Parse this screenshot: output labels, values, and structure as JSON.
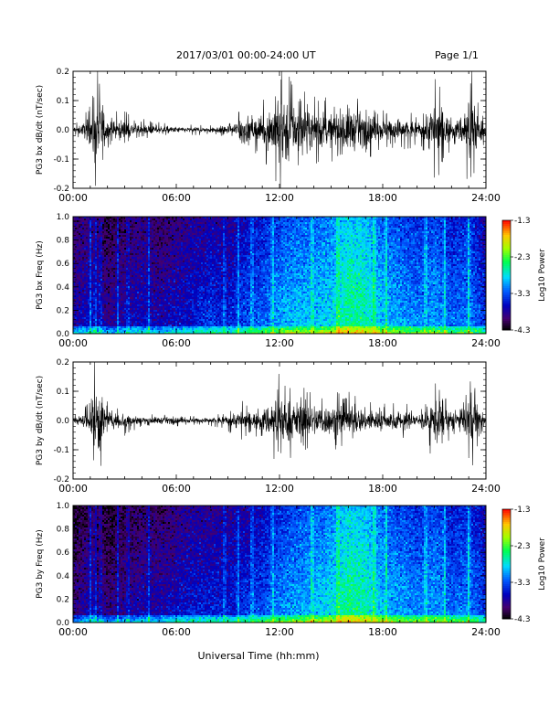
{
  "header": {
    "date_range": "2017/03/01   00:00-24:00 UT",
    "page": "Page 1/1"
  },
  "x_axis": {
    "label": "Universal Time (hh:mm)",
    "tick_labels": [
      "00:00",
      "06:00",
      "12:00",
      "18:00",
      "24:00"
    ]
  },
  "chart_data": [
    {
      "type": "line",
      "panel": "bx_dbdt",
      "ylabel": "PG3 bx dB/dt (nT/sec)",
      "ylim": [
        -0.2,
        0.2
      ],
      "y_ticks": [
        "0.2",
        "0.1",
        "0.0",
        "-0.1",
        "-0.2"
      ],
      "x_range_hours": [
        0,
        24
      ],
      "envelope": {
        "x_hours": [
          0,
          0.5,
          1.0,
          1.2,
          1.4,
          1.6,
          1.9,
          2.3,
          2.8,
          3.5,
          4.5,
          5.5,
          6.5,
          7.5,
          8.5,
          9.3,
          9.8,
          10.4,
          11.0,
          11.6,
          12.0,
          12.4,
          12.8,
          13.3,
          13.8,
          14.3,
          14.8,
          15.3,
          15.8,
          16.3,
          16.8,
          17.3,
          17.8,
          18.3,
          18.8,
          19.3,
          19.8,
          20.3,
          20.8,
          21.2,
          21.6,
          22.0,
          22.4,
          22.8,
          23.2,
          23.6,
          24.0
        ],
        "amplitude": [
          0.02,
          0.03,
          0.08,
          0.22,
          0.22,
          0.2,
          0.08,
          0.05,
          0.06,
          0.04,
          0.025,
          0.02,
          0.015,
          0.015,
          0.02,
          0.03,
          0.1,
          0.06,
          0.08,
          0.15,
          0.22,
          0.21,
          0.15,
          0.12,
          0.1,
          0.12,
          0.09,
          0.1,
          0.14,
          0.12,
          0.1,
          0.08,
          0.07,
          0.06,
          0.07,
          0.06,
          0.05,
          0.05,
          0.14,
          0.16,
          0.1,
          0.05,
          0.06,
          0.14,
          0.22,
          0.08,
          0.03
        ]
      }
    },
    {
      "type": "heatmap",
      "panel": "bx_freq",
      "ylabel": "PG3 bx Freq (Hz)",
      "ylim": [
        0,
        1.0
      ],
      "y_ticks": [
        "1.0",
        "0.8",
        "0.6",
        "0.4",
        "0.2",
        "0.0"
      ],
      "x_range_hours": [
        0,
        24
      ],
      "colorbar": {
        "label": "Log10 Power",
        "range": [
          -4.3,
          -1.3
        ],
        "ticks": [
          "-1.3",
          "-2.3",
          "-3.3",
          "-4.3"
        ]
      },
      "mean_log_power_by_hour": {
        "x_hours": [
          0,
          1,
          2,
          3,
          4,
          5,
          6,
          7,
          8,
          9,
          10,
          11,
          12,
          13,
          14,
          15,
          16,
          17,
          18,
          19,
          20,
          21,
          22,
          23,
          24
        ],
        "values": [
          -3.7,
          -3.6,
          -3.8,
          -3.7,
          -3.6,
          -3.7,
          -3.6,
          -3.5,
          -3.4,
          -3.5,
          -3.3,
          -3.2,
          -3.0,
          -2.9,
          -2.9,
          -2.8,
          -2.5,
          -2.6,
          -2.9,
          -3.0,
          -3.1,
          -3.0,
          -3.2,
          -3.1,
          -3.4
        ]
      }
    },
    {
      "type": "line",
      "panel": "by_dbdt",
      "ylabel": "PG3 by dB/dt (nT/sec)",
      "ylim": [
        -0.2,
        0.2
      ],
      "y_ticks": [
        "0.2",
        "0.1",
        "0.0",
        "-0.1",
        "-0.2"
      ],
      "x_range_hours": [
        0,
        24
      ],
      "envelope": {
        "x_hours": [
          0,
          0.5,
          1.0,
          1.2,
          1.4,
          1.6,
          1.9,
          2.3,
          2.8,
          3.5,
          4.5,
          5.5,
          6.5,
          7.5,
          8.5,
          9.3,
          9.8,
          10.4,
          11.0,
          11.6,
          12.0,
          12.4,
          12.8,
          13.3,
          13.8,
          14.3,
          14.8,
          15.3,
          15.8,
          16.3,
          16.8,
          17.3,
          17.8,
          18.3,
          18.8,
          19.3,
          19.8,
          20.3,
          20.8,
          21.2,
          21.6,
          22.0,
          22.4,
          22.8,
          23.2,
          23.6,
          24.0
        ],
        "amplitude": [
          0.02,
          0.03,
          0.06,
          0.2,
          0.22,
          0.2,
          0.06,
          0.04,
          0.05,
          0.03,
          0.02,
          0.02,
          0.015,
          0.015,
          0.02,
          0.04,
          0.06,
          0.04,
          0.06,
          0.12,
          0.14,
          0.13,
          0.11,
          0.1,
          0.09,
          0.1,
          0.08,
          0.09,
          0.1,
          0.08,
          0.07,
          0.06,
          0.06,
          0.05,
          0.06,
          0.05,
          0.04,
          0.05,
          0.1,
          0.13,
          0.08,
          0.05,
          0.05,
          0.1,
          0.16,
          0.06,
          0.03
        ]
      }
    },
    {
      "type": "heatmap",
      "panel": "by_freq",
      "ylabel": "PG3 by Freq (Hz)",
      "ylim": [
        0,
        1.0
      ],
      "y_ticks": [
        "1.0",
        "0.8",
        "0.6",
        "0.4",
        "0.2",
        "0.0"
      ],
      "x_range_hours": [
        0,
        24
      ],
      "colorbar": {
        "label": "Log10 Power",
        "range": [
          -4.3,
          -1.3
        ],
        "ticks": [
          "-1.3",
          "-2.3",
          "-3.3",
          "-4.3"
        ]
      },
      "mean_log_power_by_hour": {
        "x_hours": [
          0,
          1,
          2,
          3,
          4,
          5,
          6,
          7,
          8,
          9,
          10,
          11,
          12,
          13,
          14,
          15,
          16,
          17,
          18,
          19,
          20,
          21,
          22,
          23,
          24
        ],
        "values": [
          -3.9,
          -3.7,
          -3.9,
          -3.8,
          -3.7,
          -3.7,
          -3.6,
          -3.5,
          -3.5,
          -3.5,
          -3.4,
          -3.3,
          -3.1,
          -3.0,
          -2.9,
          -2.8,
          -2.5,
          -2.6,
          -2.9,
          -3.0,
          -3.1,
          -3.0,
          -3.2,
          -3.1,
          -3.4
        ]
      }
    }
  ]
}
